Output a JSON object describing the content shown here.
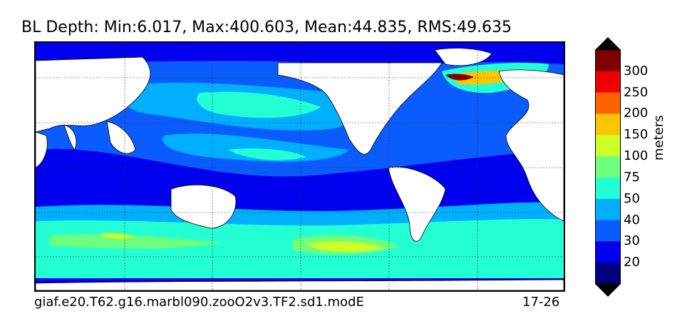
{
  "title": "BL Depth: Min:6.017, Max:400.603, Mean:44.835, RMS:49.635",
  "footer": {
    "case_name": "giaf.e20.T62.g16.marbl090.zooO2v3.TF2.sd1.modE",
    "years": "17-26"
  },
  "colorbar": {
    "units": "meters",
    "levels": [
      "20",
      "30",
      "40",
      "50",
      "75",
      "100",
      "150",
      "200",
      "250",
      "300"
    ],
    "colors": [
      "#00007f",
      "#0000ee",
      "#0a5cff",
      "#00b0ff",
      "#23ffd3",
      "#6dff7d",
      "#cdff29",
      "#ffc400",
      "#ff6200",
      "#ee0000",
      "#7f0000"
    ],
    "extend": "both"
  },
  "map": {
    "land_color": "#ffffff",
    "gridlines": "dashed",
    "projection": "equirectangular, centered on Pacific"
  }
}
